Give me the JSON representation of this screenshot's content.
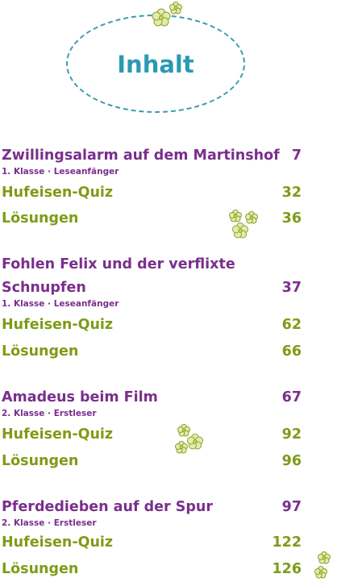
{
  "page": {
    "title": "Inhalt"
  },
  "stories": [
    {
      "title_lines": [
        "Zwillingsalarm auf dem Martinshof"
      ],
      "page": "7",
      "meta": "1. Klasse · Leseanfänger",
      "quiz_label": "Hufeisen-Quiz",
      "quiz_page": "32",
      "solutions_label": "Lösungen",
      "solutions_page": "36"
    },
    {
      "title_lines": [
        "Fohlen Felix und der verflixte",
        "Schnupfen"
      ],
      "page": "37",
      "meta": "1. Klasse · Leseanfänger",
      "quiz_label": "Hufeisen-Quiz",
      "quiz_page": "62",
      "solutions_label": "Lösungen",
      "solutions_page": "66"
    },
    {
      "title_lines": [
        "Amadeus beim Film"
      ],
      "page": "67",
      "meta": "2. Klasse · Erstleser",
      "quiz_label": "Hufeisen-Quiz",
      "quiz_page": "92",
      "solutions_label": "Lösungen",
      "solutions_page": "96"
    },
    {
      "title_lines": [
        "Pferdedieben auf der Spur"
      ],
      "page": "97",
      "meta": "2. Klasse · Erstleser",
      "quiz_label": "Hufeisen-Quiz",
      "quiz_page": "122",
      "solutions_label": "Lösungen",
      "solutions_page": "126"
    }
  ],
  "colors": {
    "title": "#2a9ab3",
    "story": "#7a2f8c",
    "section": "#7f9b17",
    "flower": "#d9e59a"
  },
  "decorations": [
    "flower-cluster-icon"
  ]
}
